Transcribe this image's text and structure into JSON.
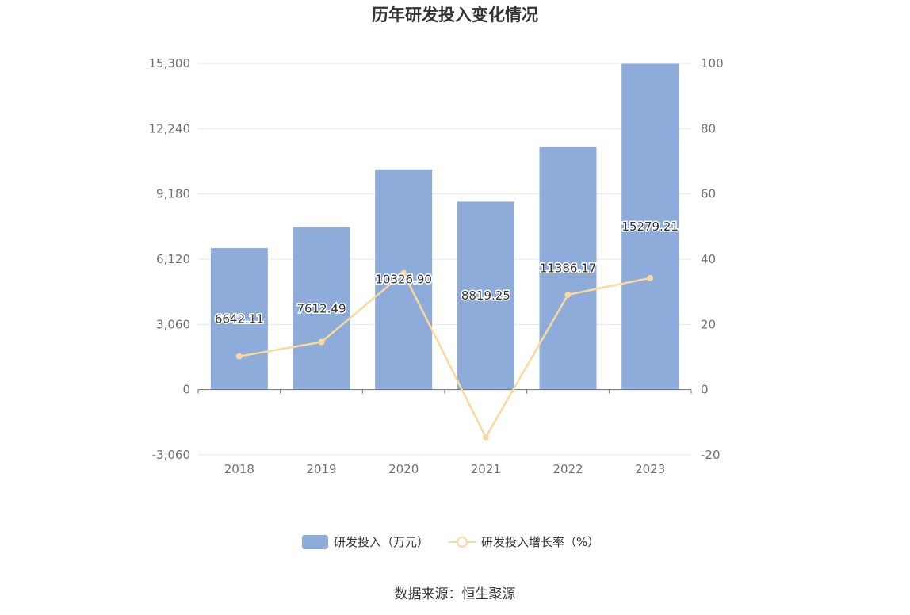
{
  "chart_data": {
    "type": "bar",
    "title": "历年研发投入变化情况",
    "categories": [
      "2018",
      "2019",
      "2020",
      "2021",
      "2022",
      "2023"
    ],
    "series": [
      {
        "name": "研发投入（万元）",
        "type": "bar",
        "axis": "left",
        "values": [
          6642.11,
          7612.49,
          10326.9,
          8819.25,
          11386.17,
          15279.21
        ],
        "labels": [
          "6642.11",
          "7612.49",
          "10326.90",
          "8819.25",
          "11386.17",
          "15279.21"
        ],
        "color": "#8eacda"
      },
      {
        "name": "研发投入增长率（%）",
        "type": "line",
        "axis": "right",
        "values": [
          10.2,
          14.6,
          35.7,
          -14.6,
          29.1,
          34.2
        ],
        "color": "#fbd89b"
      }
    ],
    "y_left": {
      "ylim": [
        -3060,
        15300
      ],
      "ticks": [
        "-3,060",
        "0",
        "3,060",
        "6,120",
        "9,180",
        "12,240",
        "15,300"
      ]
    },
    "y_right": {
      "ylim": [
        -20,
        100
      ],
      "ticks": [
        "-20",
        "0",
        "20",
        "40",
        "60",
        "80",
        "100"
      ]
    },
    "grid": true,
    "legend_position": "bottom-center"
  },
  "source_text": "数据来源：恒生聚源",
  "colors": {
    "bar": "#8eacda",
    "line": "#fbd89b",
    "grid": "#e0e6f1",
    "axis": "#6e7079",
    "text": "#333333"
  }
}
